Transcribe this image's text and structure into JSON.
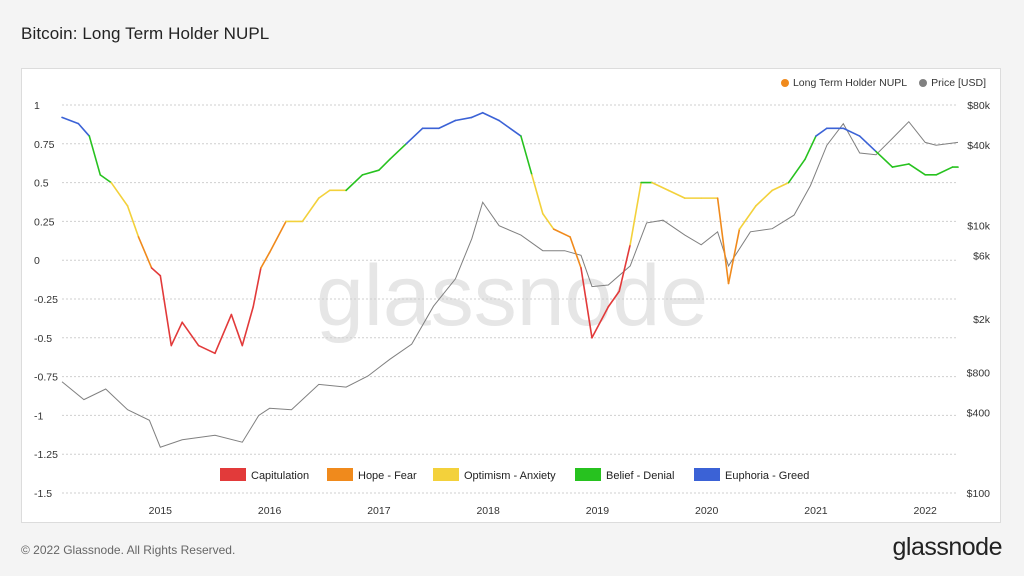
{
  "title": "Bitcoin: Long Term Holder NUPL",
  "footer": "© 2022 Glassnode. All Rights Reserved.",
  "brand": "glassnode",
  "watermark": "glassnode",
  "colors": {
    "price": "#808080",
    "capitulation": "#e23a3a",
    "hope_fear": "#f08a1c",
    "optimism_anxiety": "#f3d13b",
    "belief_denial": "#27c21f",
    "euphoria_greed": "#3b62d6",
    "nupl_dot": "#f08a1c"
  },
  "chart_data": {
    "type": "line",
    "title": "Bitcoin: Long Term Holder NUPL",
    "xlabel": "",
    "ylabel": "",
    "ylim": [
      -1.5,
      1
    ],
    "y2scale": "log",
    "y2lim": [
      100,
      80000
    ],
    "x_ticks": [
      "2015",
      "2016",
      "2017",
      "2018",
      "2019",
      "2020",
      "2021",
      "2022"
    ],
    "y_ticks": [
      "1",
      "0.75",
      "0.5",
      "0.25",
      "0",
      "-0.25",
      "-0.5",
      "-0.75",
      "-1",
      "-1.25",
      "-1.5"
    ],
    "y2_ticks": [
      "$80k",
      "$40k",
      "$10k",
      "$6k",
      "$2k",
      "$800",
      "$400",
      "$100"
    ],
    "legend_top": [
      "Long Term Holder NUPL",
      "Price [USD]"
    ],
    "legend_bottom": [
      "Capitulation",
      "Hope - Fear",
      "Optimism - Anxiety",
      "Belief - Denial",
      "Euphoria - Greed"
    ],
    "grid": true,
    "series": [
      {
        "name": "Long Term Holder NUPL",
        "x": [
          2014.1,
          2014.25,
          2014.35,
          2014.45,
          2014.55,
          2014.7,
          2014.8,
          2014.92,
          2015.0,
          2015.1,
          2015.2,
          2015.35,
          2015.5,
          2015.65,
          2015.75,
          2015.85,
          2015.92,
          2016.0,
          2016.15,
          2016.3,
          2016.45,
          2016.55,
          2016.7,
          2016.85,
          2017.0,
          2017.1,
          2017.25,
          2017.4,
          2017.55,
          2017.7,
          2017.85,
          2017.95,
          2018.1,
          2018.3,
          2018.4,
          2018.5,
          2018.6,
          2018.75,
          2018.85,
          2018.95,
          2019.1,
          2019.2,
          2019.3,
          2019.4,
          2019.5,
          2019.65,
          2019.8,
          2019.95,
          2020.1,
          2020.2,
          2020.3,
          2020.45,
          2020.6,
          2020.75,
          2020.9,
          2021.0,
          2021.1,
          2021.25,
          2021.4,
          2021.55,
          2021.7,
          2021.85,
          2022.0,
          2022.1,
          2022.25,
          2022.3
        ],
        "values": [
          0.92,
          0.88,
          0.8,
          0.55,
          0.5,
          0.35,
          0.15,
          -0.05,
          -0.1,
          -0.55,
          -0.4,
          -0.55,
          -0.6,
          -0.35,
          -0.55,
          -0.3,
          -0.05,
          0.05,
          0.25,
          0.25,
          0.4,
          0.45,
          0.45,
          0.55,
          0.58,
          0.65,
          0.75,
          0.85,
          0.85,
          0.9,
          0.92,
          0.95,
          0.9,
          0.8,
          0.55,
          0.3,
          0.2,
          0.15,
          -0.05,
          -0.5,
          -0.3,
          -0.2,
          0.1,
          0.5,
          0.5,
          0.45,
          0.4,
          0.4,
          0.4,
          -0.15,
          0.2,
          0.35,
          0.45,
          0.5,
          0.65,
          0.8,
          0.85,
          0.85,
          0.8,
          0.7,
          0.6,
          0.62,
          0.55,
          0.55,
          0.6,
          0.6
        ]
      },
      {
        "name": "Price [USD]",
        "x": [
          2014.1,
          2014.3,
          2014.5,
          2014.7,
          2014.9,
          2015.0,
          2015.2,
          2015.5,
          2015.75,
          2015.9,
          2016.0,
          2016.2,
          2016.45,
          2016.7,
          2016.9,
          2017.1,
          2017.3,
          2017.5,
          2017.7,
          2017.85,
          2017.95,
          2018.1,
          2018.3,
          2018.5,
          2018.7,
          2018.85,
          2018.95,
          2019.1,
          2019.3,
          2019.45,
          2019.6,
          2019.8,
          2019.95,
          2020.1,
          2020.2,
          2020.4,
          2020.6,
          2020.8,
          2020.95,
          2021.1,
          2021.25,
          2021.4,
          2021.55,
          2021.7,
          2021.85,
          2022.0,
          2022.1,
          2022.3
        ],
        "values": [
          680,
          500,
          600,
          420,
          350,
          220,
          250,
          270,
          240,
          380,
          430,
          420,
          650,
          620,
          750,
          1000,
          1300,
          2500,
          4000,
          8000,
          15000,
          10000,
          8500,
          6500,
          6500,
          6000,
          3500,
          3600,
          5000,
          10500,
          11000,
          8500,
          7200,
          9000,
          5000,
          9000,
          9500,
          12000,
          20000,
          40000,
          58000,
          35000,
          34000,
          45000,
          60000,
          42000,
          40000,
          42000
        ]
      }
    ]
  }
}
